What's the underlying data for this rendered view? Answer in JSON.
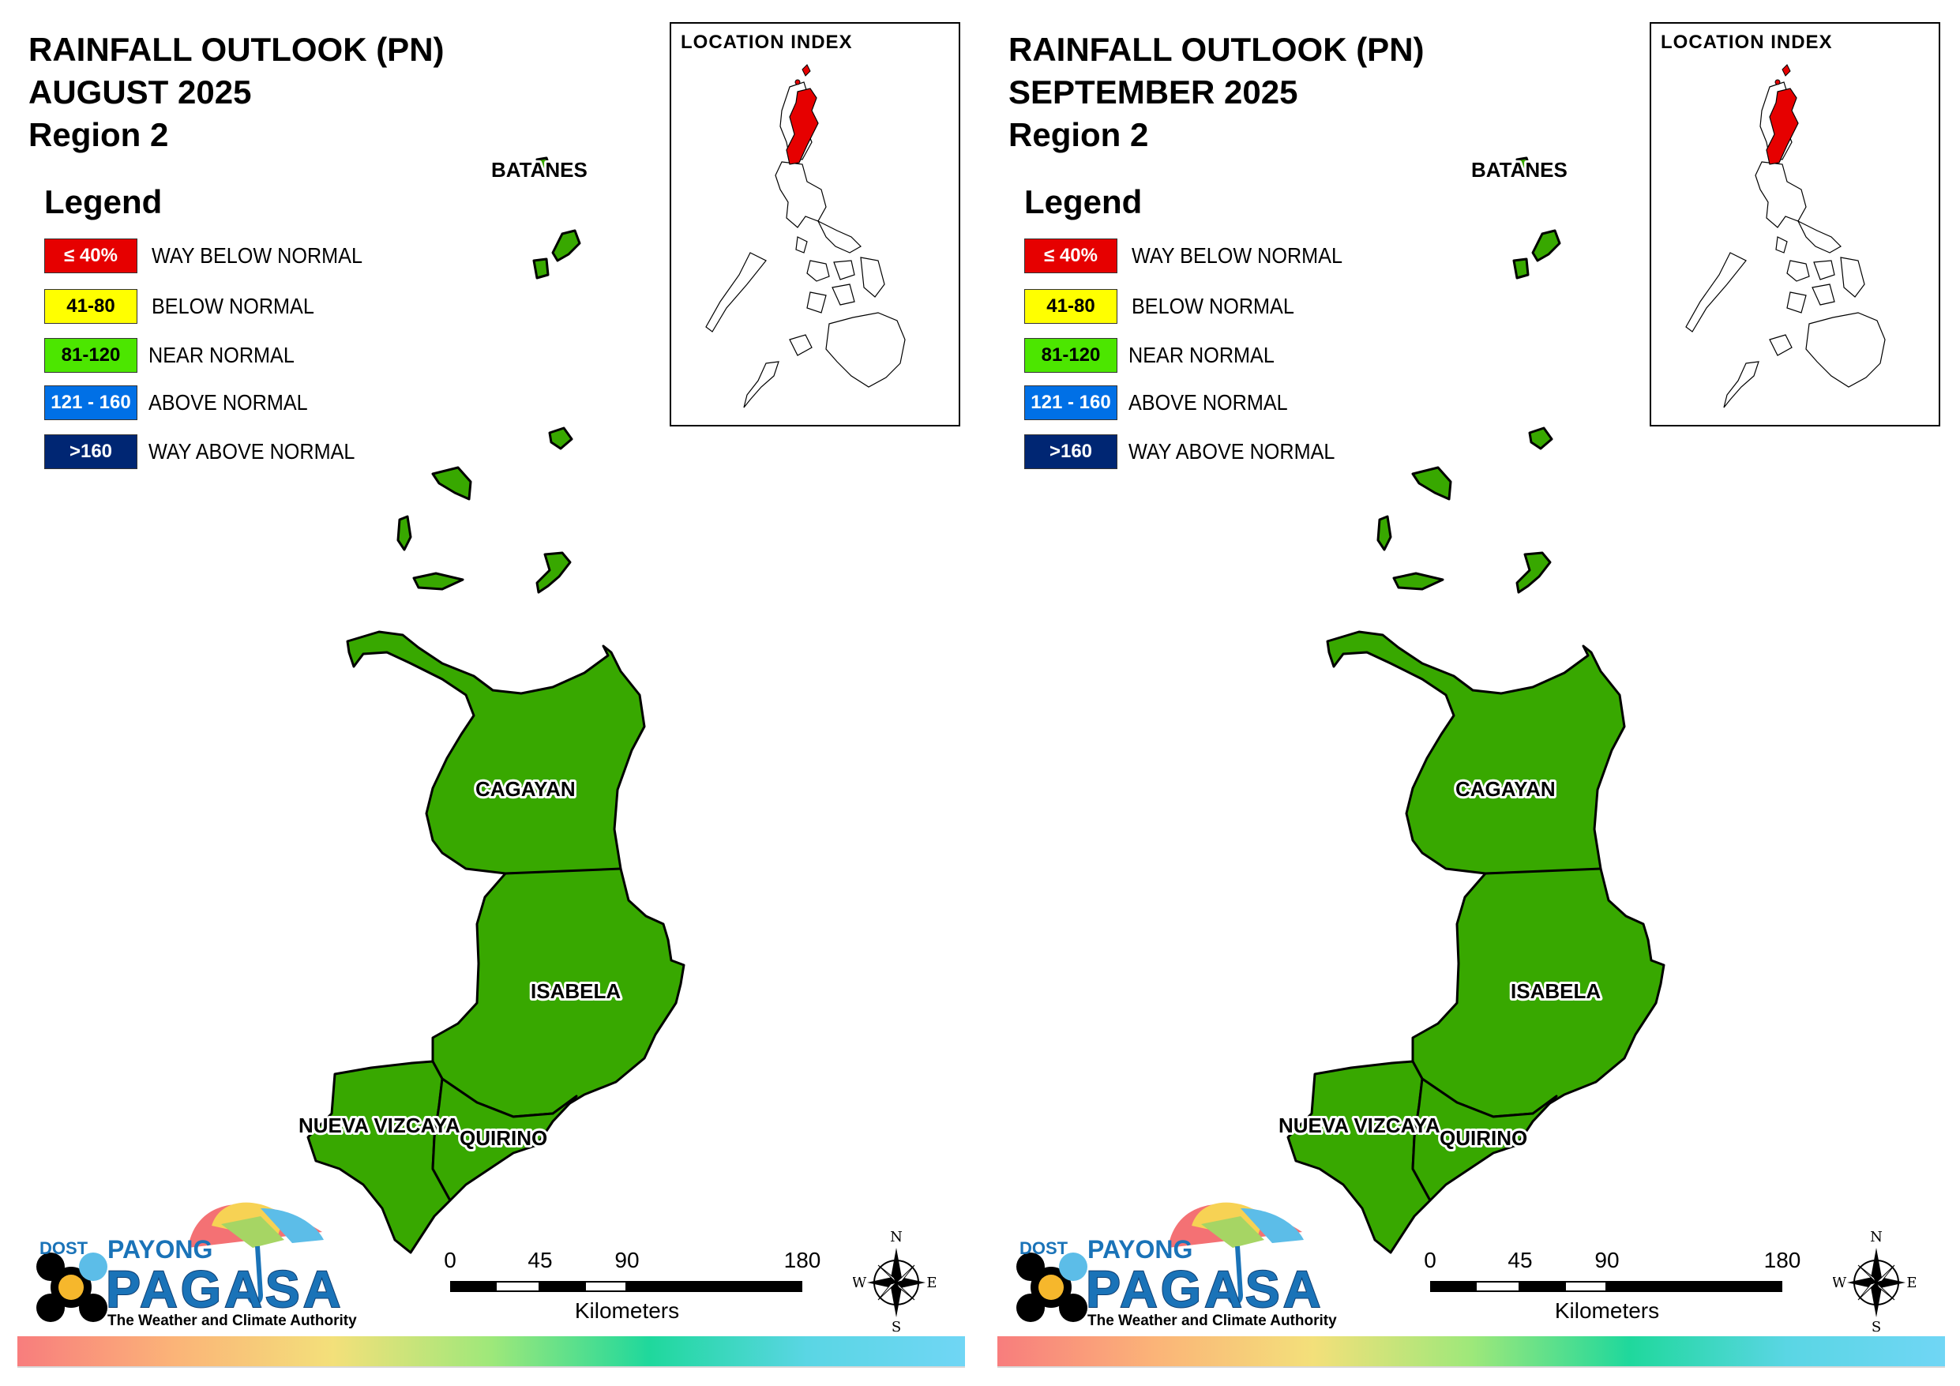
{
  "panels": [
    {
      "title_line1": "RAINFALL OUTLOOK (PN)",
      "title_line2": "AUGUST 2025",
      "title_line3": "Region 2"
    },
    {
      "title_line1": "RAINFALL OUTLOOK (PN)",
      "title_line2": "SEPTEMBER 2025",
      "title_line3": "Region 2"
    }
  ],
  "legend": {
    "title": "Legend",
    "items": [
      {
        "range": "≤ 40%",
        "label": "WAY BELOW NORMAL",
        "color": "#e60000",
        "text_color": "#ffffff"
      },
      {
        "range": "41-80",
        "label": "BELOW NORMAL",
        "color": "#ffff00",
        "text_color": "#000000"
      },
      {
        "range": "81-120",
        "label": "NEAR NORMAL",
        "color": "#4ce600",
        "text_color": "#000000"
      },
      {
        "range": "121 - 160",
        "label": "ABOVE NORMAL",
        "color": "#0070e6",
        "text_color": "#ffffff"
      },
      {
        "range": ">160",
        "label": "WAY ABOVE NORMAL",
        "color": "#002673",
        "text_color": "#ffffff"
      }
    ]
  },
  "location_index": {
    "title": "LOCATION INDEX",
    "highlight_color": "#e60000"
  },
  "provinces": {
    "batanes": "BATANES",
    "cagayan": "CAGAYAN",
    "isabela": "ISABELA",
    "nueva_vizcaya": "NUEVA VIZCAYA",
    "quirino": "QUIRINO",
    "fill_color": "#38a800"
  },
  "scale_bar": {
    "ticks": [
      "0",
      "45",
      "90",
      "180"
    ],
    "unit": "Kilometers"
  },
  "compass": {
    "n": "N",
    "s": "S",
    "e": "E",
    "w": "W"
  },
  "logo": {
    "dost": "DOST",
    "payong": "PAYONG",
    "pagasa": "PAGASA",
    "tagline": "The Weather and Climate Authority"
  }
}
